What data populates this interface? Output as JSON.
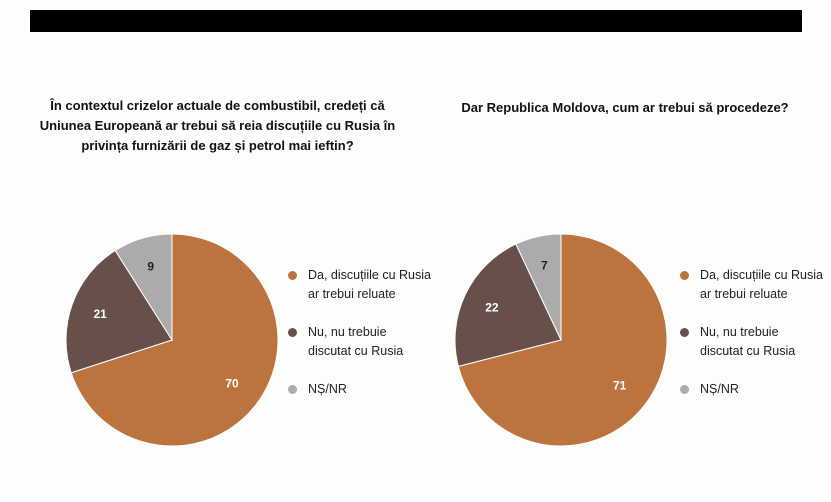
{
  "colors": {
    "da": "#bd733e",
    "nu": "#675049",
    "ns": "#ababab"
  },
  "legend": [
    {
      "line1": "Da, discuțiile cu Rusia",
      "line2": "ar trebui reluate",
      "color": "#bd733e"
    },
    {
      "line1": "Nu, nu trebuie",
      "line2": "discutat cu Rusia",
      "color": "#675049"
    },
    {
      "line1": "NȘ/NR",
      "line2": "",
      "color": "#ababab"
    }
  ],
  "chart_data": [
    {
      "type": "pie",
      "title_lines": [
        "În contextul crizelor actuale de combustibil, credeți că",
        "Uniunea Europeană ar trebui să reia discuțiile cu Rusia în",
        "privința furnizării de gaz și petrol mai ieftin?"
      ],
      "slices": [
        {
          "label": "Da, discuțiile cu Rusia ar trebui reluate",
          "value": 70,
          "color": "#bd733e"
        },
        {
          "label": "Nu, nu trebuie discutat cu Rusia",
          "value": 21,
          "color": "#675049"
        },
        {
          "label": "NȘ/NR",
          "value": 9,
          "color": "#ababab"
        }
      ]
    },
    {
      "type": "pie",
      "title_lines": [
        "Dar Republica Moldova, cum ar trebui să procedeze?"
      ],
      "slices": [
        {
          "label": "Da, discuțiile cu Rusia ar trebui reluate",
          "value": 71,
          "color": "#bd733e"
        },
        {
          "label": "Nu, nu trebuie discutat cu Rusia",
          "value": 22,
          "color": "#675049"
        },
        {
          "label": "NȘ/NR",
          "value": 7,
          "color": "#ababab"
        }
      ]
    }
  ]
}
